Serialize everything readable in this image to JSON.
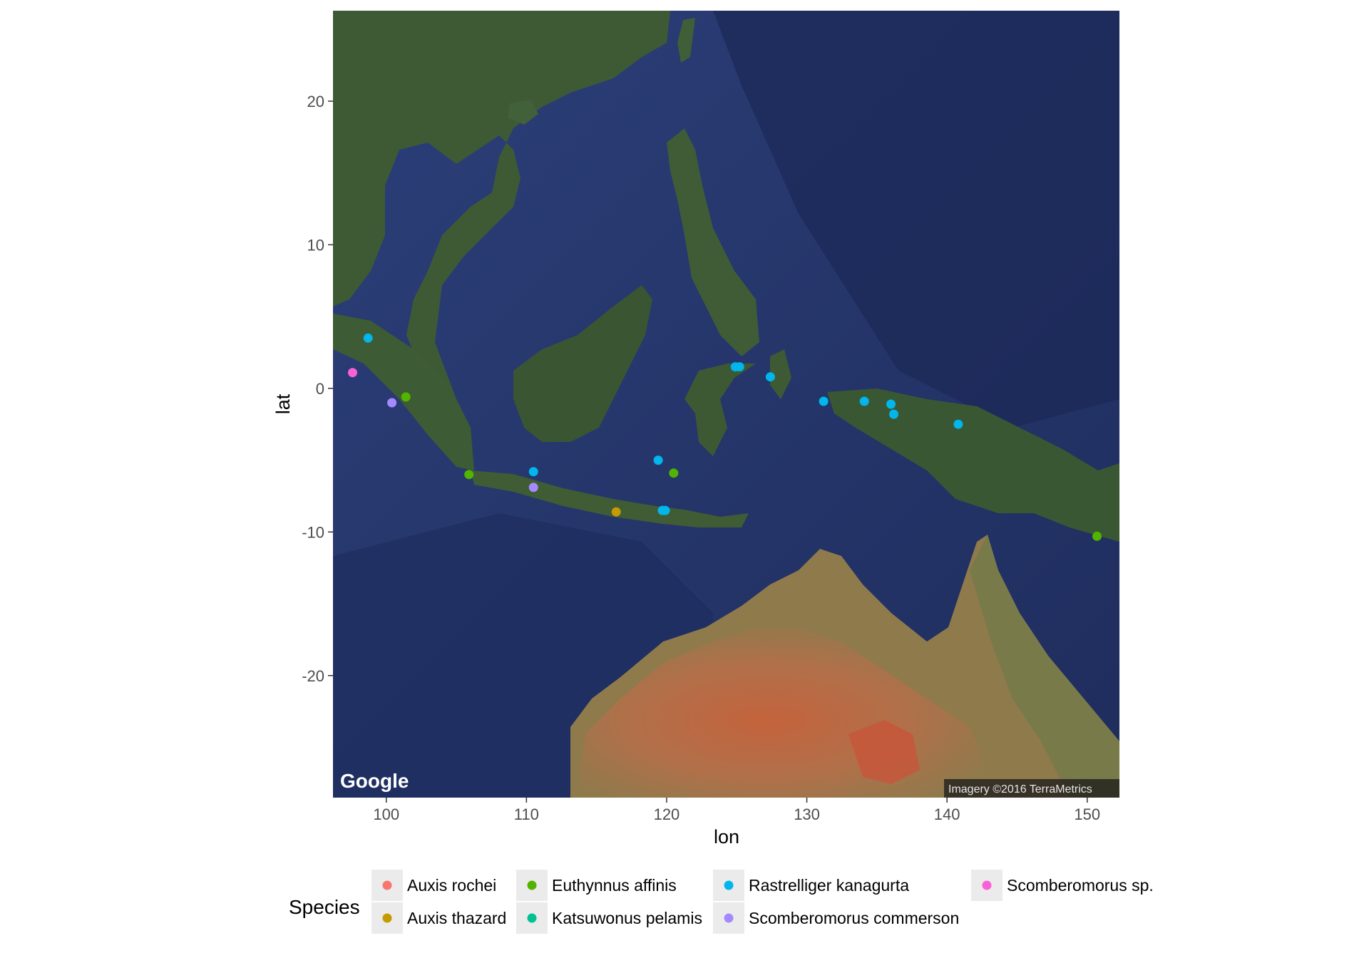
{
  "colors": {
    "ocean": "#2b3d78",
    "deep_ocean": "#1e2b5c",
    "land": "#3d5a34",
    "desert": "#b26a45",
    "key_bg": "#ebebeb"
  },
  "map": {
    "google_logo": "Google",
    "attribution": "Imagery ©2016 TerraMetrics"
  },
  "chart_data": {
    "type": "scatter",
    "xlabel": "lon",
    "ylabel": "lat",
    "xlim": [
      96.2,
      152.3
    ],
    "ylim": [
      -28.5,
      26.3
    ],
    "x_ticks": [
      100,
      110,
      120,
      130,
      140,
      150
    ],
    "y_ticks": [
      20,
      10,
      0,
      -10,
      -20
    ],
    "x_tick_labels": [
      "100",
      "110",
      "120",
      "130",
      "140",
      "150"
    ],
    "y_tick_labels": [
      "20",
      "10",
      "0",
      "-10",
      "-20"
    ],
    "grid": false,
    "legend_position": "bottom",
    "legend": {
      "title": "Species",
      "entries": [
        {
          "name": "Auxis rochei",
          "color": "#F8766D"
        },
        {
          "name": "Auxis thazard",
          "color": "#C49A00"
        },
        {
          "name": "Euthynnus affinis",
          "color": "#53B400"
        },
        {
          "name": "Katsuwonus pelamis",
          "color": "#00C094"
        },
        {
          "name": "Rastrelliger kanagurta",
          "color": "#00B6EB"
        },
        {
          "name": "Scomberomorus commerson",
          "color": "#A58AFF"
        },
        {
          "name": "Scomberomorus sp.",
          "color": "#FB61D7"
        }
      ]
    },
    "series": [
      {
        "name": "Auxis thazard",
        "points": [
          {
            "x": 116.4,
            "y": -8.6
          }
        ]
      },
      {
        "name": "Euthynnus affinis",
        "points": [
          {
            "x": 101.4,
            "y": -0.6
          },
          {
            "x": 105.9,
            "y": -6.0
          },
          {
            "x": 120.5,
            "y": -5.9
          },
          {
            "x": 150.7,
            "y": -10.3
          }
        ]
      },
      {
        "name": "Rastrelliger kanagurta",
        "points": [
          {
            "x": 98.7,
            "y": 3.5
          },
          {
            "x": 110.5,
            "y": -5.8
          },
          {
            "x": 119.4,
            "y": -5.0
          },
          {
            "x": 119.7,
            "y": -8.5
          },
          {
            "x": 119.9,
            "y": -8.5
          },
          {
            "x": 124.9,
            "y": 1.5
          },
          {
            "x": 125.2,
            "y": 1.5
          },
          {
            "x": 127.4,
            "y": 0.8
          },
          {
            "x": 131.2,
            "y": -0.9
          },
          {
            "x": 134.1,
            "y": -0.9
          },
          {
            "x": 136.0,
            "y": -1.1
          },
          {
            "x": 136.2,
            "y": -1.8
          },
          {
            "x": 140.8,
            "y": -2.5
          }
        ]
      },
      {
        "name": "Scomberomorus commerson",
        "points": [
          {
            "x": 100.4,
            "y": -1.0
          },
          {
            "x": 110.5,
            "y": -6.9
          }
        ]
      },
      {
        "name": "Scomberomorus sp.",
        "points": [
          {
            "x": 97.6,
            "y": 1.1
          }
        ]
      }
    ]
  }
}
